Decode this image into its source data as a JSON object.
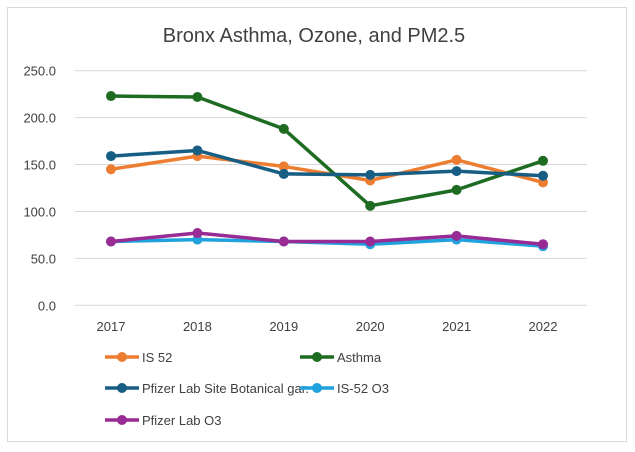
{
  "chart_data": {
    "type": "line",
    "title": "Bronx Asthma, Ozone, and PM2.5",
    "xlabel": "",
    "ylabel": "",
    "categories": [
      "2017",
      "2018",
      "2019",
      "2020",
      "2021",
      "2022"
    ],
    "ylim": [
      0,
      250
    ],
    "yticks": [
      "0.0",
      "50.0",
      "100.0",
      "150.0",
      "200.0",
      "250.0"
    ],
    "grid": true,
    "legend_position": "bottom",
    "series": [
      {
        "name": "IS 52",
        "color": "#ed7d31",
        "values": [
          145,
          159,
          148,
          133,
          155,
          131
        ]
      },
      {
        "name": "Asthma",
        "color": "#1e6b22",
        "values": [
          223,
          222,
          188,
          106,
          123,
          154
        ]
      },
      {
        "name": "Pfizer Lab Site Botanical gar.",
        "color": "#185e84",
        "values": [
          159,
          165,
          140,
          139,
          143,
          138
        ]
      },
      {
        "name": "IS-52 O3",
        "color": "#1fa2dd",
        "values": [
          68,
          70,
          68,
          65,
          70,
          63
        ]
      },
      {
        "name": "Pfizer Lab O3",
        "color": "#982b94",
        "values": [
          68,
          77,
          68,
          68,
          74,
          65
        ]
      }
    ]
  }
}
